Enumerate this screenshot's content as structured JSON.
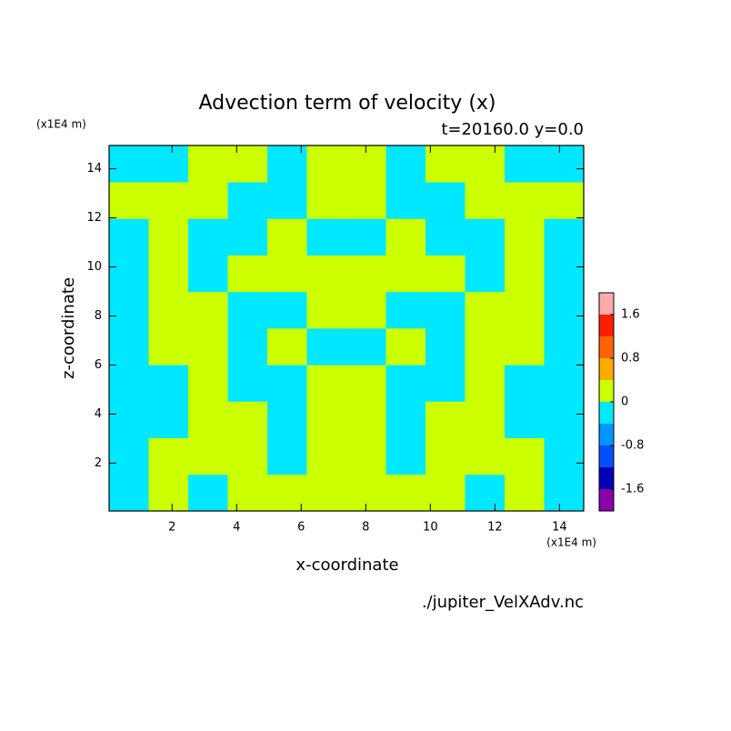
{
  "chart_data": {
    "type": "contour",
    "title": "Advection term of velocity (x)",
    "subtitle": "t=20160.0 y=0.0",
    "xlabel": "x-coordinate",
    "ylabel": "z-coordinate",
    "x_unit": "(x1E4 m)",
    "y_unit": "(x1E4 m)",
    "source": "./jupiter_VelXAdv.nc",
    "xlim": [
      0.05,
      14.75
    ],
    "ylim": [
      0.05,
      14.95
    ],
    "xticks": [
      2,
      4,
      6,
      8,
      10,
      12,
      14
    ],
    "yticks": [
      2,
      4,
      6,
      8,
      10,
      12,
      14
    ],
    "x": [
      0.66,
      1.89,
      3.11,
      4.34,
      5.56,
      6.79,
      8.01,
      9.24,
      10.46,
      11.69,
      12.91,
      14.14
    ],
    "y": [
      0.8,
      2.29,
      3.78,
      5.27,
      6.76,
      8.25,
      9.74,
      11.23,
      12.72,
      14.21
    ],
    "z": [
      [
        -0.2,
        0.2,
        -0.2,
        0.2,
        0.2,
        0.2,
        0.2,
        0.2,
        0.2,
        -0.2,
        0.2,
        -0.2
      ],
      [
        -0.2,
        0.2,
        0.2,
        0.2,
        -0.2,
        0.2,
        0.2,
        -0.2,
        0.2,
        0.2,
        0.2,
        -0.2
      ],
      [
        -0.2,
        -0.2,
        0.2,
        0.2,
        -0.2,
        0.2,
        0.2,
        -0.2,
        0.2,
        0.2,
        -0.2,
        -0.2
      ],
      [
        -0.2,
        -0.2,
        0.2,
        -0.2,
        -0.2,
        0.2,
        0.2,
        -0.2,
        -0.2,
        0.2,
        -0.2,
        -0.2
      ],
      [
        -0.2,
        0.2,
        0.2,
        -0.2,
        0.2,
        -0.2,
        -0.2,
        0.2,
        -0.2,
        0.2,
        0.2,
        -0.2
      ],
      [
        -0.2,
        0.2,
        0.2,
        -0.2,
        -0.2,
        0.2,
        0.2,
        -0.2,
        -0.2,
        0.2,
        0.2,
        -0.2
      ],
      [
        -0.2,
        0.2,
        -0.2,
        0.2,
        0.2,
        0.2,
        0.2,
        0.2,
        0.2,
        -0.2,
        0.2,
        -0.2
      ],
      [
        -0.2,
        0.2,
        -0.2,
        -0.2,
        0.2,
        -0.2,
        -0.2,
        0.2,
        -0.2,
        -0.2,
        0.2,
        -0.2
      ],
      [
        0.2,
        0.2,
        0.2,
        -0.2,
        -0.2,
        0.2,
        0.2,
        -0.2,
        -0.2,
        0.2,
        0.2,
        0.2
      ],
      [
        -0.2,
        -0.2,
        0.2,
        0.2,
        -0.2,
        0.2,
        0.2,
        -0.2,
        0.2,
        0.2,
        -0.2,
        -0.2
      ]
    ],
    "levels": [
      -2.0,
      -1.6,
      -1.2,
      -0.8,
      -0.4,
      0,
      0.4,
      0.8,
      1.2,
      1.6,
      2.0
    ],
    "colors": [
      "#8a00aa",
      "#0000b4",
      "#0050ff",
      "#0096ff",
      "#00e8ff",
      "#ccff00",
      "#ffaa00",
      "#ff6400",
      "#ff1e00",
      "#ffaaaa"
    ],
    "colorbar_ticks": [
      -1.6,
      -0.8,
      0,
      0.8,
      1.6
    ]
  }
}
